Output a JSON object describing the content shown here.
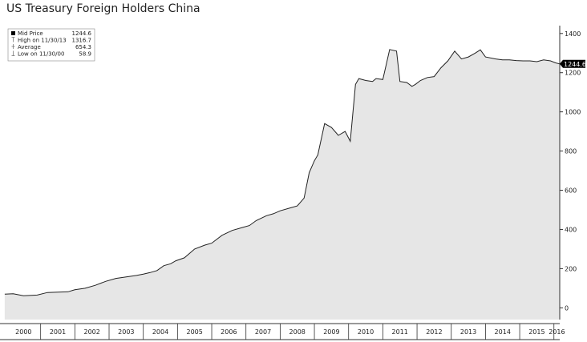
{
  "title": "US Treasury Foreign Holders China",
  "chart_data": {
    "type": "area",
    "title": "US Treasury Foreign Holders China",
    "xlabel": "",
    "ylabel": "",
    "x_tick_labels": [
      "2000",
      "2001",
      "2002",
      "2003",
      "2004",
      "2005",
      "2006",
      "2007",
      "2008",
      "2009",
      "2010",
      "2011",
      "2012",
      "2013",
      "2014",
      "2015",
      "2016"
    ],
    "y_ticks": [
      0,
      200,
      400,
      600,
      800,
      1000,
      1200,
      1400
    ],
    "y_tick_labels": [
      "0",
      "200",
      "400",
      "600",
      "800",
      "1000",
      "1200",
      "1400"
    ],
    "ylim": [
      -60,
      1440
    ],
    "xlim": [
      2000.0,
      2016.17
    ],
    "grid": false,
    "legend_position": "top-left",
    "legend": [
      {
        "label": "Mid Price",
        "value": "1244.6"
      },
      {
        "label": "High on 11/30/13",
        "value": "1316.7"
      },
      {
        "label": "Average",
        "value": "654.3"
      },
      {
        "label": "Low on 11/30/00",
        "value": "58.9"
      }
    ],
    "last_value_label": "1244.6",
    "colors": {
      "line": "#222222",
      "fill": "#e6e6e6",
      "axis": "#333333",
      "last_badge": "#000000"
    },
    "series": [
      {
        "name": "Mid Price",
        "x": [
          1999.95,
          2000.2,
          2000.5,
          2000.9,
          2001.2,
          2001.5,
          2001.8,
          2002.0,
          2002.3,
          2002.6,
          2002.9,
          2003.2,
          2003.5,
          2003.8,
          2004.0,
          2004.2,
          2004.4,
          2004.6,
          2004.8,
          2004.95,
          2005.2,
          2005.5,
          2005.8,
          2006.0,
          2006.3,
          2006.6,
          2006.9,
          2007.1,
          2007.3,
          2007.6,
          2007.8,
          2008.0,
          2008.3,
          2008.5,
          2008.7,
          2008.85,
          2009.0,
          2009.1,
          2009.3,
          2009.5,
          2009.7,
          2009.9,
          2010.05,
          2010.2,
          2010.3,
          2010.5,
          2010.7,
          2010.8,
          2011.0,
          2011.2,
          2011.4,
          2011.5,
          2011.7,
          2011.85,
          2011.95,
          2012.1,
          2012.3,
          2012.5,
          2012.7,
          2012.9,
          2013.1,
          2013.3,
          2013.5,
          2013.7,
          2013.85,
          2014.0,
          2014.3,
          2014.5,
          2014.7,
          2014.9,
          2015.1,
          2015.3,
          2015.5,
          2015.7,
          2015.9,
          2016.05,
          2016.17
        ],
        "values": [
          70,
          72,
          62,
          65,
          78,
          80,
          82,
          92,
          100,
          115,
          135,
          150,
          158,
          165,
          172,
          180,
          190,
          215,
          225,
          240,
          255,
          300,
          320,
          330,
          370,
          395,
          410,
          420,
          445,
          470,
          480,
          495,
          510,
          520,
          560,
          690,
          750,
          780,
          940,
          920,
          880,
          900,
          850,
          1140,
          1170,
          1160,
          1155,
          1170,
          1165,
          1318,
          1310,
          1155,
          1150,
          1130,
          1140,
          1160,
          1175,
          1180,
          1225,
          1260,
          1310,
          1270,
          1280,
          1300,
          1316.7,
          1280,
          1270,
          1265,
          1265,
          1262,
          1260,
          1260,
          1256,
          1265,
          1260,
          1250,
          1244.6
        ]
      }
    ]
  }
}
